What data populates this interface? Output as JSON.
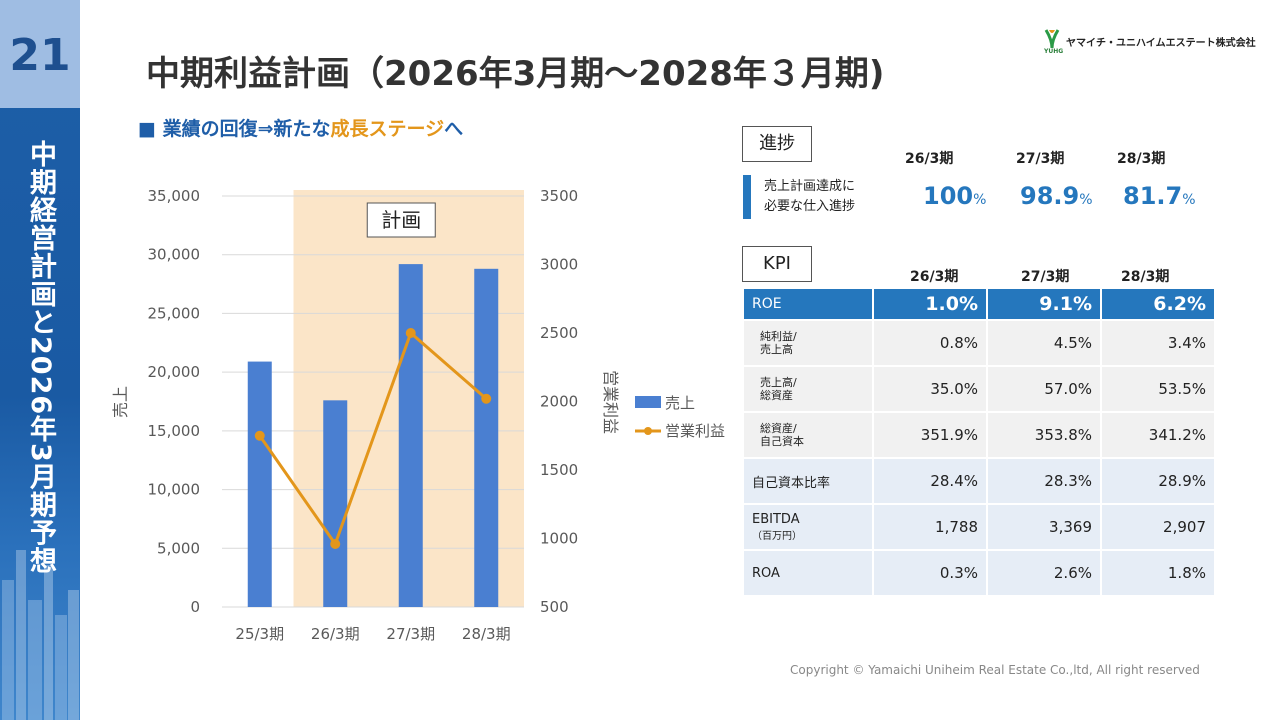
{
  "sidebar": {
    "slide_number": "21",
    "vertical_title": "中期経営計画と2026年3月期予想"
  },
  "header": {
    "title": "中期利益計画（2026年3月期〜2028年３月期)",
    "company_name": "ヤマイチ・ユニハイムエステート株式会社",
    "logo_mark": "YUHG",
    "subtitle_prefix": "■ 業績の回復⇒新たな",
    "subtitle_accent": "成長ステージ",
    "subtitle_suffix": "へ"
  },
  "chart_data": {
    "type": "bar",
    "categories": [
      "25/3期",
      "26/3期",
      "27/3期",
      "28/3期"
    ],
    "series": [
      {
        "name": "売上",
        "type": "bar",
        "axis": "left",
        "values": [
          20900,
          17600,
          29200,
          28800
        ],
        "color": "#4a7fd1"
      },
      {
        "name": "営業利益",
        "type": "line",
        "axis": "right",
        "values": [
          1750,
          960,
          2500,
          2020
        ],
        "color": "#e3961b"
      }
    ],
    "ylabel_left": "売上",
    "ylabel_right": "営業利益",
    "ylim_left": [
      0,
      35000
    ],
    "ylim_right": [
      500,
      3500
    ],
    "yticks_left": [
      "0",
      "5,000",
      "10,000",
      "15,000",
      "20,000",
      "25,000",
      "30,000",
      "35,000"
    ],
    "yticks_right": [
      "500",
      "1000",
      "1500",
      "2000",
      "2500",
      "3000",
      "3500"
    ],
    "highlight_label": "計画",
    "highlight_range": [
      "26/3期",
      "28/3期"
    ],
    "highlight_color": "#fbe5c8",
    "grid": true,
    "legend_position": "right"
  },
  "progress": {
    "tag": "進捗",
    "label_line1": "売上計画達成に",
    "label_line2": "必要な仕入進捗",
    "columns": [
      "26/3期",
      "27/3期",
      "28/3期"
    ],
    "values": [
      "100",
      "98.9",
      "81.7"
    ],
    "unit": "%"
  },
  "kpi": {
    "tag": "KPI",
    "columns": [
      "26/3期",
      "27/3期",
      "28/3期"
    ],
    "rows": [
      {
        "label1": "ROE",
        "label2": "",
        "values": [
          "1.0%",
          "9.1%",
          "6.2%"
        ]
      },
      {
        "label1": "純利益/",
        "label2": "売上高",
        "values": [
          "0.8%",
          "4.5%",
          "3.4%"
        ]
      },
      {
        "label1": "売上高/",
        "label2": "総資産",
        "values": [
          "35.0%",
          "57.0%",
          "53.5%"
        ]
      },
      {
        "label1": "総資産/",
        "label2": "自己資本",
        "values": [
          "351.9%",
          "353.8%",
          "341.2%"
        ]
      },
      {
        "label1": "自己資本比率",
        "label2": "",
        "values": [
          "28.4%",
          "28.3%",
          "28.9%"
        ]
      },
      {
        "label1": "EBITDA",
        "label2": "（百万円）",
        "values": [
          "1,788",
          "3,369",
          "2,907"
        ]
      },
      {
        "label1": "ROA",
        "label2": "",
        "values": [
          "0.3%",
          "2.6%",
          "1.8%"
        ]
      }
    ]
  },
  "footer": {
    "copyright": "Copyright © Yamaichi Uniheim Real Estate Co.,ltd, All right reserved"
  }
}
